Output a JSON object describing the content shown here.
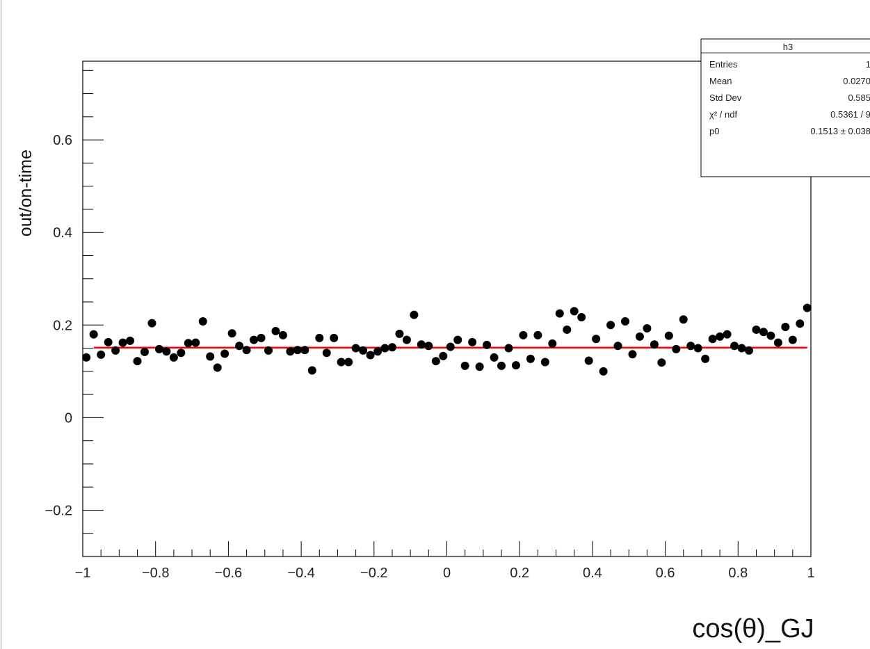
{
  "chart_data": {
    "type": "scatter",
    "title": "",
    "xlabel": "cos(θ)_GJ",
    "ylabel": "out/on-time",
    "xlim": [
      -1,
      1
    ],
    "ylim": [
      -0.3,
      0.77
    ],
    "grid": false,
    "x_ticks": [
      -1,
      -0.8,
      -0.6,
      -0.4,
      -0.2,
      0,
      0.2,
      0.4,
      0.6,
      0.8,
      1
    ],
    "x_tick_labels": [
      "−1",
      "−0.8",
      "−0.6",
      "−0.4",
      "−0.2",
      "0",
      "0.2",
      "0.4",
      "0.6",
      "0.8",
      "1"
    ],
    "y_ticks": [
      -0.2,
      0,
      0.2,
      0.4,
      0.6
    ],
    "y_tick_labels": [
      "−0.2",
      "0",
      "0.2",
      "0.4",
      "0.6"
    ],
    "series": [
      {
        "points": [
          [
            -0.99,
            0.13
          ],
          [
            -0.97,
            0.18
          ],
          [
            -0.95,
            0.136
          ],
          [
            -0.93,
            0.163
          ],
          [
            -0.91,
            0.145
          ],
          [
            -0.89,
            0.162
          ],
          [
            -0.87,
            0.166
          ],
          [
            -0.85,
            0.122
          ],
          [
            -0.83,
            0.142
          ],
          [
            -0.81,
            0.204
          ],
          [
            -0.79,
            0.148
          ],
          [
            -0.77,
            0.143
          ],
          [
            -0.75,
            0.13
          ],
          [
            -0.73,
            0.14
          ],
          [
            -0.71,
            0.161
          ],
          [
            -0.69,
            0.162
          ],
          [
            -0.67,
            0.208
          ],
          [
            -0.65,
            0.132
          ],
          [
            -0.63,
            0.108
          ],
          [
            -0.61,
            0.138
          ],
          [
            -0.59,
            0.182
          ],
          [
            -0.57,
            0.155
          ],
          [
            -0.55,
            0.146
          ],
          [
            -0.53,
            0.168
          ],
          [
            -0.51,
            0.172
          ],
          [
            -0.49,
            0.145
          ],
          [
            -0.47,
            0.187
          ],
          [
            -0.45,
            0.178
          ],
          [
            -0.43,
            0.143
          ],
          [
            -0.41,
            0.146
          ],
          [
            -0.39,
            0.146
          ],
          [
            -0.37,
            0.102
          ],
          [
            -0.35,
            0.172
          ],
          [
            -0.33,
            0.14
          ],
          [
            -0.31,
            0.172
          ],
          [
            -0.29,
            0.12
          ],
          [
            -0.27,
            0.12
          ],
          [
            -0.25,
            0.15
          ],
          [
            -0.23,
            0.145
          ],
          [
            -0.21,
            0.135
          ],
          [
            -0.19,
            0.143
          ],
          [
            -0.17,
            0.15
          ],
          [
            -0.15,
            0.152
          ],
          [
            -0.13,
            0.181
          ],
          [
            -0.11,
            0.168
          ],
          [
            -0.09,
            0.222
          ],
          [
            -0.07,
            0.158
          ],
          [
            -0.05,
            0.155
          ],
          [
            -0.03,
            0.122
          ],
          [
            -0.01,
            0.133
          ],
          [
            0.01,
            0.153
          ],
          [
            0.03,
            0.168
          ],
          [
            0.05,
            0.112
          ],
          [
            0.07,
            0.163
          ],
          [
            0.09,
            0.11
          ],
          [
            0.11,
            0.157
          ],
          [
            0.13,
            0.13
          ],
          [
            0.15,
            0.112
          ],
          [
            0.17,
            0.15
          ],
          [
            0.19,
            0.113
          ],
          [
            0.21,
            0.178
          ],
          [
            0.23,
            0.127
          ],
          [
            0.25,
            0.178
          ],
          [
            0.27,
            0.12
          ],
          [
            0.29,
            0.16
          ],
          [
            0.31,
            0.225
          ],
          [
            0.33,
            0.19
          ],
          [
            0.35,
            0.23
          ],
          [
            0.37,
            0.217
          ],
          [
            0.39,
            0.123
          ],
          [
            0.41,
            0.17
          ],
          [
            0.43,
            0.1
          ],
          [
            0.45,
            0.2
          ],
          [
            0.47,
            0.155
          ],
          [
            0.49,
            0.208
          ],
          [
            0.51,
            0.137
          ],
          [
            0.53,
            0.175
          ],
          [
            0.55,
            0.193
          ],
          [
            0.57,
            0.158
          ],
          [
            0.59,
            0.119
          ],
          [
            0.61,
            0.177
          ],
          [
            0.63,
            0.148
          ],
          [
            0.65,
            0.212
          ],
          [
            0.67,
            0.155
          ],
          [
            0.69,
            0.15
          ],
          [
            0.71,
            0.127
          ],
          [
            0.73,
            0.17
          ],
          [
            0.75,
            0.175
          ],
          [
            0.77,
            0.18
          ],
          [
            0.79,
            0.155
          ],
          [
            0.81,
            0.15
          ],
          [
            0.83,
            0.145
          ],
          [
            0.85,
            0.19
          ],
          [
            0.87,
            0.185
          ],
          [
            0.89,
            0.177
          ],
          [
            0.91,
            0.162
          ],
          [
            0.93,
            0.196
          ],
          [
            0.95,
            0.168
          ],
          [
            0.97,
            0.203
          ],
          [
            0.99,
            0.237
          ]
        ]
      }
    ],
    "fit": {
      "y": 0.1513,
      "x_range": [
        -0.97,
        0.99
      ],
      "color": "#ff0000"
    },
    "marker_color": "#000000",
    "stats_box": {
      "title": "h3",
      "rows": [
        {
          "label": "Entries",
          "value": "1"
        },
        {
          "label": "Mean",
          "value": "0.0270"
        },
        {
          "label": "Std Dev",
          "value": "0.585"
        },
        {
          "label": "χ² / ndf",
          "value": "0.5361 / 9"
        },
        {
          "label": "p0",
          "value": "0.1513 ± 0.038"
        }
      ]
    }
  }
}
